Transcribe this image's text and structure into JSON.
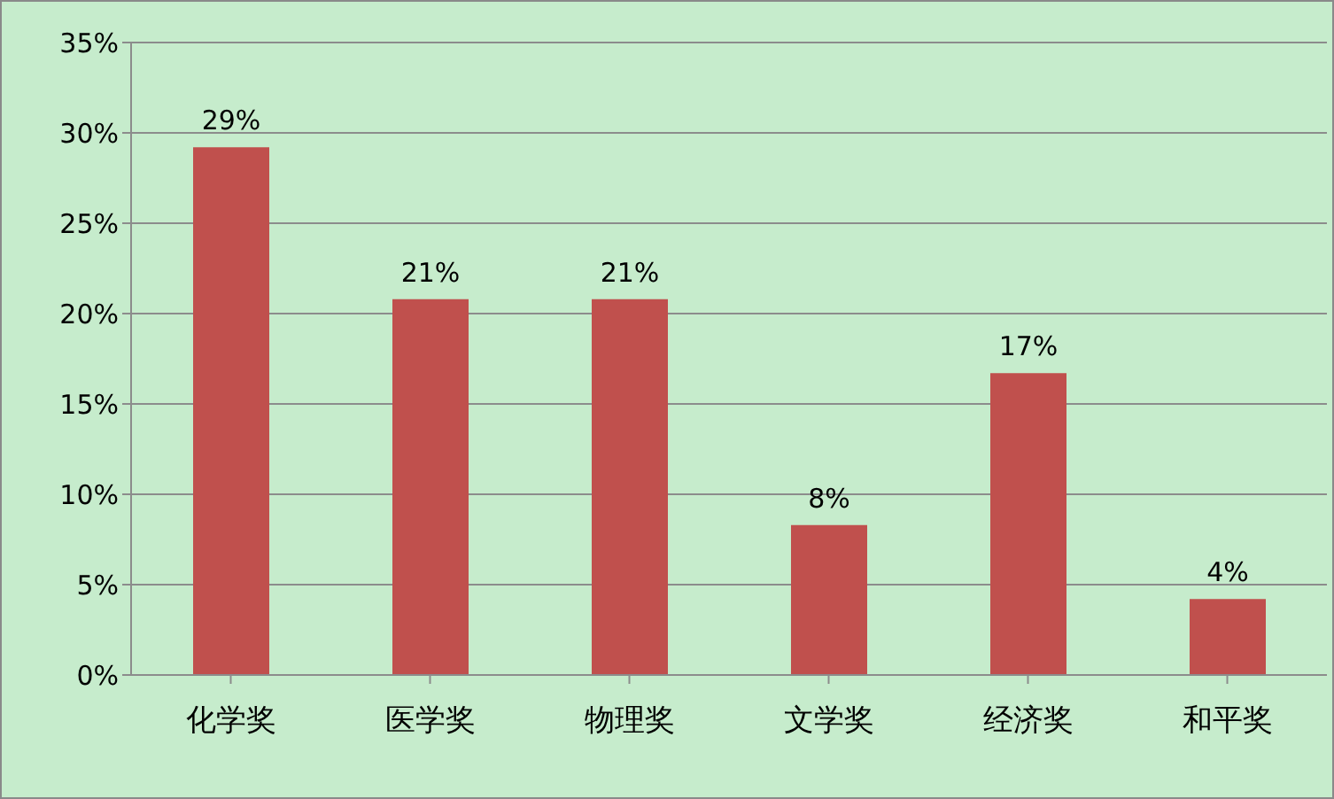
{
  "chart_data": {
    "type": "bar",
    "categories": [
      "化学奖",
      "医学奖",
      "物理奖",
      "文学奖",
      "经济奖",
      "和平奖"
    ],
    "values": [
      29.2,
      20.8,
      20.8,
      8.3,
      16.7,
      4.2
    ],
    "value_labels": [
      "29%",
      "21%",
      "21%",
      "8%",
      "17%",
      "4%"
    ],
    "color": "#c0504d",
    "ylim": [
      0,
      35
    ],
    "yticks": [
      {
        "value": 0,
        "label": "0%"
      },
      {
        "value": 5,
        "label": "5%"
      },
      {
        "value": 10,
        "label": "10%"
      },
      {
        "value": 15,
        "label": "15%"
      },
      {
        "value": 20,
        "label": "20%"
      },
      {
        "value": 25,
        "label": "25%"
      },
      {
        "value": 30,
        "label": "30%"
      },
      {
        "value": 35,
        "label": "35%"
      }
    ],
    "grid": "y",
    "legend": false
  }
}
